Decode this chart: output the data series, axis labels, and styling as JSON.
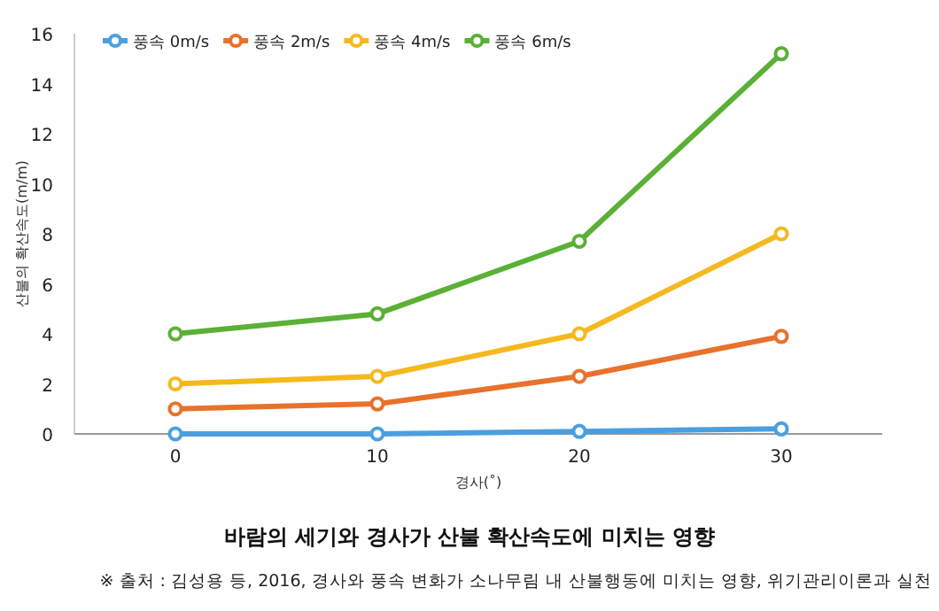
{
  "chart_data": {
    "type": "line",
    "title": "바람의 세기와 경사가 산불 확산속도에 미치는 영향",
    "xlabel": "경사(˚)",
    "ylabel": "산불의 확산속도(m/m)",
    "categories": [
      "0",
      "10",
      "20",
      "30"
    ],
    "ylim": [
      0,
      16
    ],
    "yticks": [
      0,
      2,
      4,
      6,
      8,
      10,
      12,
      14,
      16
    ],
    "legend": "top left",
    "marker": "circle",
    "line_style": "solid",
    "grid": false,
    "series": [
      {
        "name": "풍속 0m/s",
        "color": "#4a9fe0",
        "values": [
          0,
          0,
          0.1,
          0.2
        ]
      },
      {
        "name": "풍속 2m/s",
        "color": "#e8722c",
        "values": [
          1,
          1.2,
          2.3,
          3.9
        ]
      },
      {
        "name": "풍속 4m/s",
        "color": "#f5b91e",
        "values": [
          2,
          2.3,
          4,
          8
        ]
      },
      {
        "name": "풍속 6m/s",
        "color": "#5bb036",
        "values": [
          4,
          4.8,
          7.7,
          15.2
        ]
      }
    ],
    "annotations": [
      "※ 출처 : 김성용 등, 2016, 경사와 풍속 변화가 소나무림 내 산불행동에 미치는 영향, 위기관리이론과 실천"
    ]
  }
}
